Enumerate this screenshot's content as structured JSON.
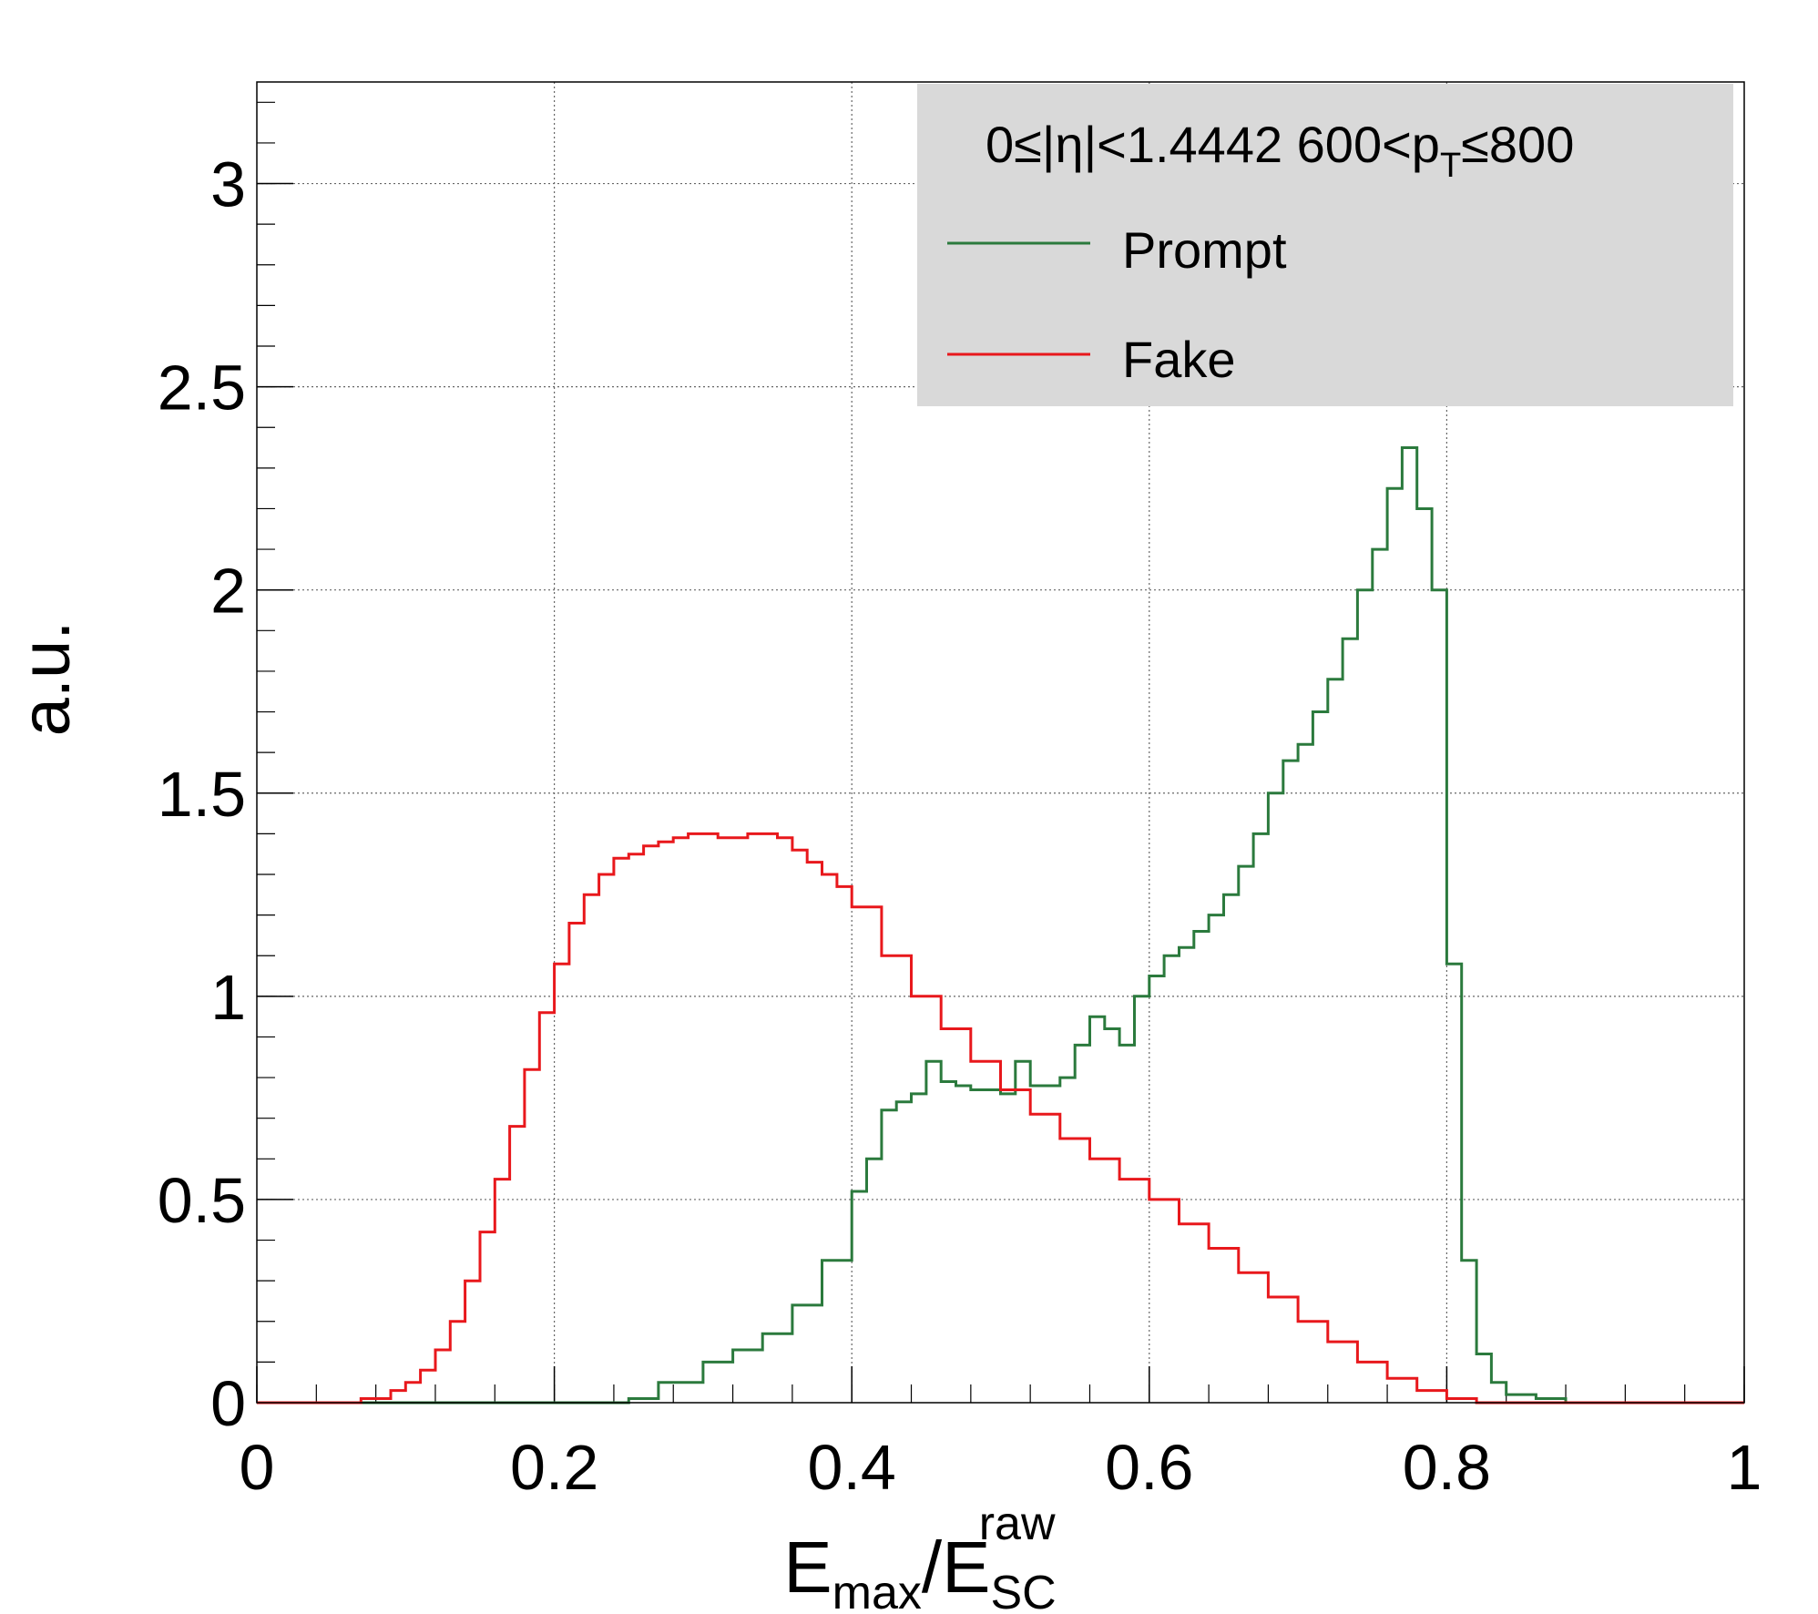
{
  "chart_data": {
    "type": "line",
    "style": "step-histogram",
    "xlim": [
      0,
      1
    ],
    "ylim": [
      0,
      3.25
    ],
    "grid": true,
    "legend_position": "top-right",
    "ylabel": "a.u.",
    "xlabel": {
      "main": "E",
      "main_sub": "max",
      "sep": "/",
      "denom": "E",
      "denom_sub": "SC",
      "denom_sup": "raw"
    },
    "x_ticks": [
      {
        "value": 0,
        "label": "0"
      },
      {
        "value": 0.2,
        "label": "0.2"
      },
      {
        "value": 0.4,
        "label": "0.4"
      },
      {
        "value": 0.6,
        "label": "0.6"
      },
      {
        "value": 0.8,
        "label": "0.8"
      },
      {
        "value": 1,
        "label": "1"
      }
    ],
    "y_ticks": [
      {
        "value": 0,
        "label": "0"
      },
      {
        "value": 0.5,
        "label": "0.5"
      },
      {
        "value": 1,
        "label": "1"
      },
      {
        "value": 1.5,
        "label": "1.5"
      },
      {
        "value": 2,
        "label": "2"
      },
      {
        "value": 2.5,
        "label": "2.5"
      },
      {
        "value": 3,
        "label": "3"
      }
    ],
    "legend": {
      "header": {
        "a": "0≤|η|<1.4442  600<p",
        "sub": "T",
        "b": "≤800"
      },
      "bg_color": "#d9d9d9"
    },
    "series": [
      {
        "name": "Prompt",
        "color": "#2b7a3d",
        "x": [
          0.0,
          0.05,
          0.1,
          0.15,
          0.2,
          0.22,
          0.25,
          0.27,
          0.3,
          0.32,
          0.34,
          0.36,
          0.38,
          0.4,
          0.41,
          0.42,
          0.43,
          0.44,
          0.45,
          0.46,
          0.47,
          0.48,
          0.49,
          0.5,
          0.51,
          0.52,
          0.53,
          0.54,
          0.55,
          0.56,
          0.57,
          0.58,
          0.59,
          0.6,
          0.61,
          0.62,
          0.63,
          0.64,
          0.65,
          0.66,
          0.67,
          0.68,
          0.69,
          0.7,
          0.71,
          0.72,
          0.73,
          0.74,
          0.75,
          0.76,
          0.77,
          0.78,
          0.79,
          0.8,
          0.81,
          0.82,
          0.83,
          0.84,
          0.86,
          0.88,
          0.9,
          0.95,
          1.0
        ],
        "y": [
          0.0,
          0.0,
          0.0,
          0.0,
          0.0,
          0.0,
          0.01,
          0.05,
          0.1,
          0.13,
          0.17,
          0.24,
          0.35,
          0.52,
          0.6,
          0.72,
          0.74,
          0.76,
          0.84,
          0.79,
          0.78,
          0.77,
          0.77,
          0.76,
          0.84,
          0.78,
          0.78,
          0.8,
          0.88,
          0.95,
          0.92,
          0.88,
          1.0,
          1.05,
          1.1,
          1.12,
          1.16,
          1.2,
          1.25,
          1.32,
          1.4,
          1.5,
          1.58,
          1.62,
          1.7,
          1.78,
          1.88,
          2.0,
          2.1,
          2.25,
          2.35,
          2.2,
          2.0,
          1.08,
          0.35,
          0.12,
          0.05,
          0.02,
          0.01,
          0.0,
          0.0,
          0.0,
          0.0
        ]
      },
      {
        "name": "Fake",
        "color": "#e8181c",
        "x": [
          0.0,
          0.05,
          0.07,
          0.09,
          0.1,
          0.11,
          0.12,
          0.13,
          0.14,
          0.15,
          0.16,
          0.17,
          0.18,
          0.19,
          0.2,
          0.21,
          0.22,
          0.23,
          0.24,
          0.25,
          0.26,
          0.27,
          0.28,
          0.29,
          0.3,
          0.31,
          0.32,
          0.33,
          0.34,
          0.35,
          0.36,
          0.37,
          0.38,
          0.39,
          0.4,
          0.42,
          0.44,
          0.46,
          0.48,
          0.5,
          0.52,
          0.54,
          0.56,
          0.58,
          0.6,
          0.62,
          0.64,
          0.66,
          0.68,
          0.7,
          0.72,
          0.74,
          0.76,
          0.78,
          0.8,
          0.82,
          0.85,
          1.0
        ],
        "y": [
          0.0,
          0.0,
          0.01,
          0.03,
          0.05,
          0.08,
          0.13,
          0.2,
          0.3,
          0.42,
          0.55,
          0.68,
          0.82,
          0.96,
          1.08,
          1.18,
          1.25,
          1.3,
          1.34,
          1.35,
          1.37,
          1.38,
          1.39,
          1.4,
          1.4,
          1.39,
          1.39,
          1.4,
          1.4,
          1.39,
          1.36,
          1.33,
          1.3,
          1.27,
          1.22,
          1.1,
          1.0,
          0.92,
          0.84,
          0.77,
          0.71,
          0.65,
          0.6,
          0.55,
          0.5,
          0.44,
          0.38,
          0.32,
          0.26,
          0.2,
          0.15,
          0.1,
          0.06,
          0.03,
          0.01,
          0.0,
          0.0,
          0.0
        ]
      }
    ]
  }
}
